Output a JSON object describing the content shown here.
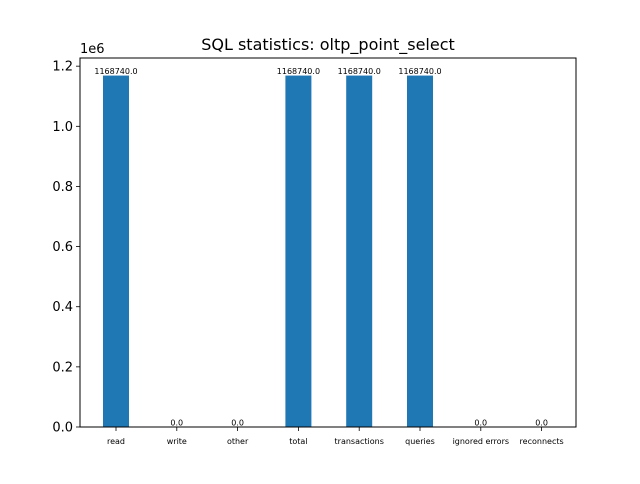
{
  "chart_data": {
    "type": "bar",
    "title": "SQL statistics: oltp_point_select",
    "categories": [
      "read",
      "write",
      "other",
      "total",
      "transactions",
      "queries",
      "ignored errors",
      "reconnects"
    ],
    "values": [
      1168740.0,
      0.0,
      0.0,
      1168740.0,
      1168740.0,
      1168740.0,
      0.0,
      0.0
    ],
    "value_labels": [
      "1168740.0",
      "0.0",
      "0.0",
      "1168740.0",
      "1168740.0",
      "1168740.0",
      "0.0",
      "0.0"
    ],
    "xlabel": "",
    "ylabel": "",
    "ylim": [
      0,
      1227177
    ],
    "yticks": [
      0,
      200000,
      400000,
      600000,
      800000,
      1000000,
      1200000
    ],
    "ytick_labels": [
      "0.0",
      "0.2",
      "0.4",
      "0.6",
      "0.8",
      "1.0",
      "1.2"
    ],
    "y_offset_label": "1e6",
    "grid": false,
    "legend": "none",
    "bar_color": "#1f77b4"
  }
}
